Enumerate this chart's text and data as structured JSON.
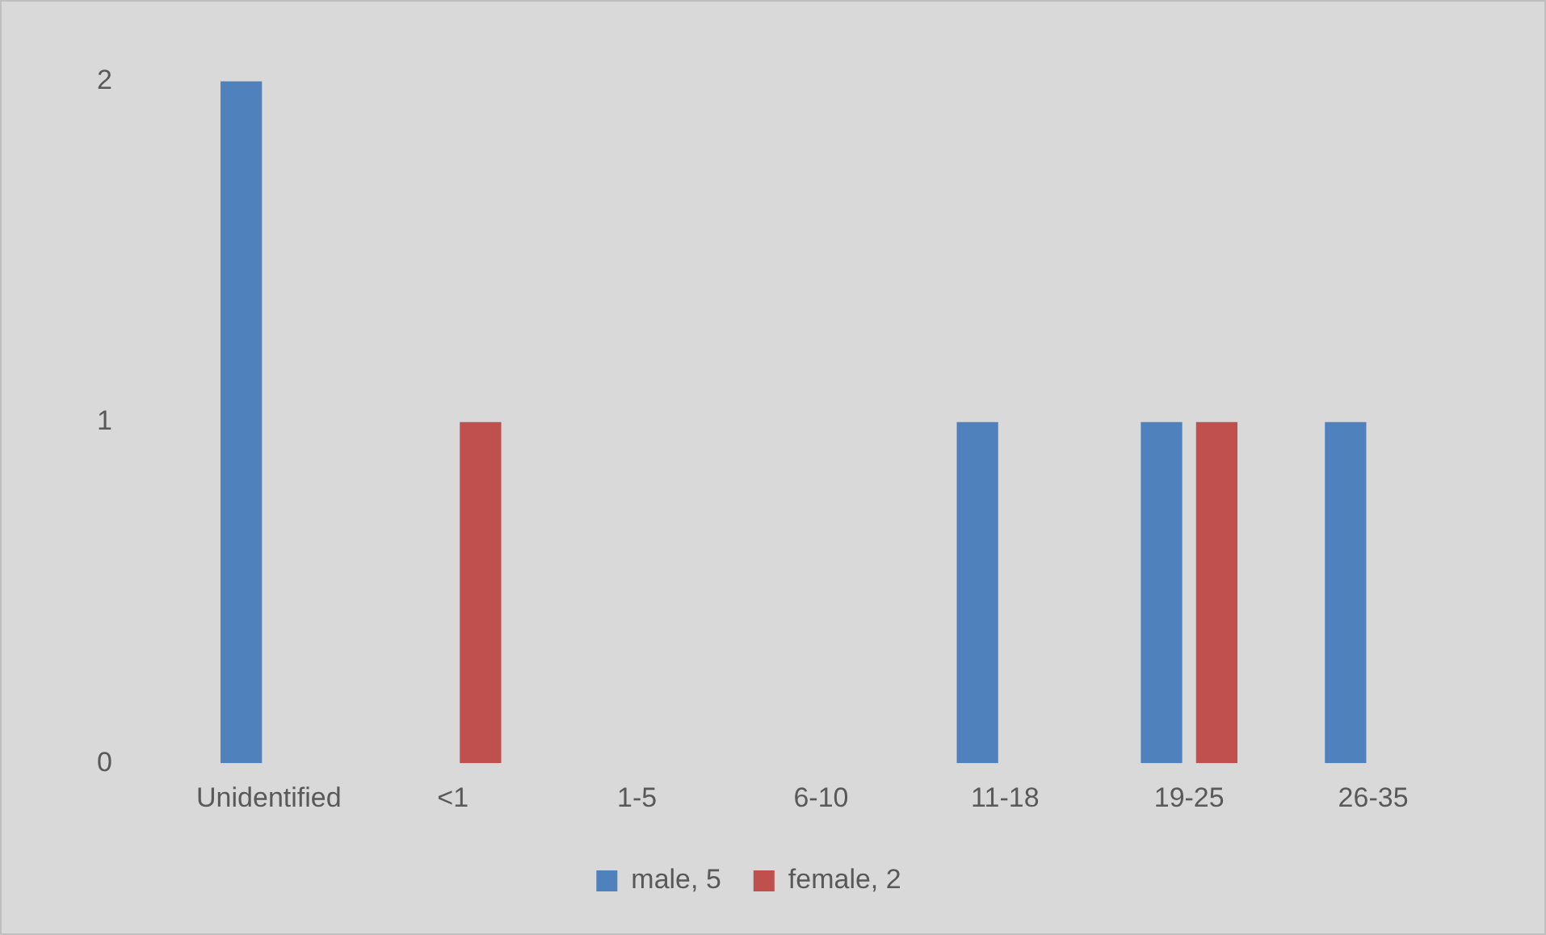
{
  "chart_data": {
    "type": "bar",
    "categories": [
      "Unidentified",
      "<1",
      "1-5",
      "6-10",
      "11-18",
      "19-25",
      "26-35"
    ],
    "series": [
      {
        "name": "male, 5",
        "color": "#4f81bd",
        "values": [
          2,
          0,
          0,
          0,
          1,
          1,
          1
        ]
      },
      {
        "name": "female, 2",
        "color": "#c0504d",
        "values": [
          0,
          1,
          0,
          0,
          0,
          1,
          0
        ]
      }
    ],
    "ylim": [
      0,
      2
    ],
    "yticks": [
      0,
      1,
      2
    ],
    "grid": false,
    "legend": "bottom"
  }
}
